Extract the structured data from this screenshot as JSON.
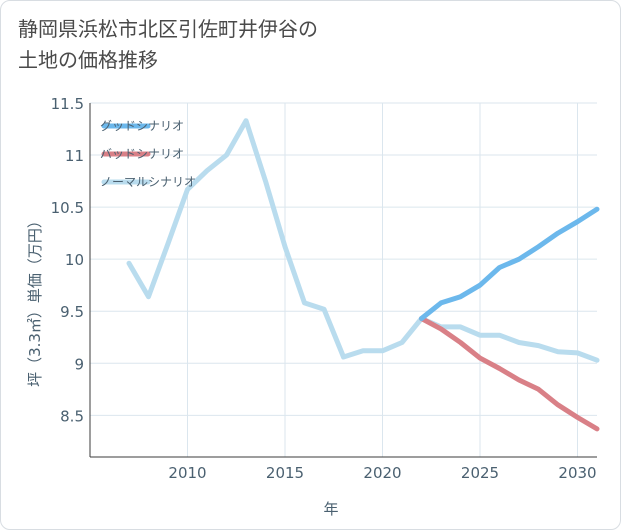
{
  "chart_data": {
    "type": "line",
    "title": "静岡県浜松市北区引佐町井伊谷の\n土地の価格推移",
    "xlabel": "年",
    "ylabel": "坪（3.3㎡）単価（万円）",
    "xlim": [
      2005,
      2031
    ],
    "ylim": [
      8.1,
      11.5
    ],
    "x_ticks": [
      "2010",
      "2015",
      "2020",
      "2025",
      "2030"
    ],
    "y_ticks": [
      "8.5",
      "9",
      "9.5",
      "10",
      "10.5",
      "11",
      "11.5"
    ],
    "grid": true,
    "legend_position": "top-left",
    "series": [
      {
        "name": "グッドシナリオ",
        "color": "#6cb8ec",
        "x": [
          2022,
          2023,
          2024,
          2025,
          2026,
          2027,
          2028,
          2029,
          2030,
          2031
        ],
        "values": [
          9.43,
          9.58,
          9.64,
          9.75,
          9.92,
          10.0,
          10.12,
          10.25,
          10.36,
          10.48
        ]
      },
      {
        "name": "バッドシナリオ",
        "color": "#d98087",
        "x": [
          2022,
          2023,
          2024,
          2025,
          2026,
          2027,
          2028,
          2029,
          2030,
          2031
        ],
        "values": [
          9.43,
          9.33,
          9.2,
          9.05,
          8.95,
          8.84,
          8.75,
          8.6,
          8.48,
          8.37
        ]
      },
      {
        "name": "ノーマルシナリオ",
        "color": "#b9dcee",
        "x": [
          2007,
          2008,
          2009,
          2010,
          2011,
          2012,
          2013,
          2014,
          2015,
          2016,
          2017,
          2018,
          2019,
          2020,
          2021,
          2022,
          2023,
          2024,
          2025,
          2026,
          2027,
          2028,
          2029,
          2030,
          2031
        ],
        "values": [
          9.96,
          9.64,
          10.15,
          10.67,
          10.85,
          11.0,
          11.33,
          10.75,
          10.12,
          9.58,
          9.52,
          9.06,
          9.12,
          9.12,
          9.2,
          9.43,
          9.35,
          9.35,
          9.27,
          9.27,
          9.2,
          9.17,
          9.11,
          9.1,
          9.03
        ]
      }
    ]
  }
}
